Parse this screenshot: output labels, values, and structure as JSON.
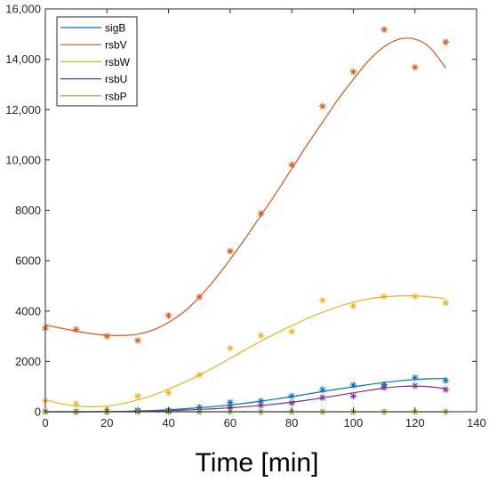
{
  "chart_data": {
    "type": "scatter",
    "title": "",
    "xlabel": "Time [min]",
    "ylabel": "",
    "xlim": [
      0,
      140
    ],
    "ylim": [
      0,
      16000
    ],
    "xticks": [
      0,
      20,
      40,
      60,
      80,
      100,
      120,
      140
    ],
    "yticks": [
      0,
      2000,
      4000,
      6000,
      8000,
      10000,
      12000,
      14000,
      16000
    ],
    "xtick_labels": [
      "0",
      "20",
      "40",
      "60",
      "80",
      "100",
      "120",
      "140"
    ],
    "ytick_labels": [
      "0",
      "2000",
      "4000",
      "6000",
      "8000",
      "10,000",
      "12,000",
      "14,000",
      "16,000"
    ],
    "grid": false,
    "legend_position": "top-left",
    "marker": "asterisk",
    "series": [
      {
        "name": "sigB",
        "color": "#0072BD",
        "x": [
          0,
          10,
          20,
          30,
          40,
          50,
          60,
          70,
          80,
          90,
          100,
          110,
          120,
          130
        ],
        "y": [
          0,
          0,
          0,
          60,
          60,
          180,
          370,
          420,
          620,
          880,
          1060,
          1080,
          1350,
          1240
        ],
        "fit_x": [
          0,
          5,
          10,
          15,
          20,
          25,
          30,
          35,
          40,
          45,
          50,
          55,
          60,
          65,
          70,
          75,
          80,
          85,
          90,
          95,
          100,
          105,
          110,
          115,
          120,
          125,
          130
        ],
        "fit_y": [
          0,
          0,
          0,
          0,
          5,
          15,
          30,
          50,
          80,
          115,
          160,
          210,
          270,
          340,
          420,
          510,
          600,
          700,
          800,
          900,
          990,
          1080,
          1160,
          1230,
          1280,
          1310,
          1320
        ]
      },
      {
        "name": "rsbV",
        "color": "#D95319",
        "x": [
          0,
          10,
          20,
          30,
          40,
          50,
          60,
          70,
          80,
          90,
          100,
          110,
          120,
          130
        ],
        "y": [
          3320,
          3270,
          3000,
          2830,
          3820,
          4560,
          6380,
          7870,
          9810,
          12130,
          13500,
          15180,
          13680,
          14680
        ],
        "fit_x": [
          0,
          5,
          10,
          15,
          20,
          25,
          30,
          35,
          40,
          45,
          50,
          55,
          60,
          65,
          70,
          75,
          80,
          85,
          90,
          95,
          100,
          105,
          110,
          115,
          120,
          125,
          130
        ],
        "fit_y": [
          3450,
          3320,
          3200,
          3100,
          3040,
          3030,
          3080,
          3250,
          3550,
          3970,
          4550,
          5250,
          6050,
          6900,
          7800,
          8700,
          9650,
          10600,
          11500,
          12400,
          13200,
          13950,
          14500,
          14800,
          14800,
          14450,
          13650
        ]
      },
      {
        "name": "rsbW",
        "color": "#EDB120",
        "x": [
          0,
          10,
          20,
          30,
          40,
          50,
          60,
          70,
          80,
          90,
          100,
          110,
          120,
          130
        ],
        "y": [
          440,
          320,
          80,
          620,
          760,
          1460,
          2520,
          3030,
          3180,
          4420,
          4200,
          4580,
          4580,
          4320
        ],
        "fit_x": [
          0,
          5,
          10,
          15,
          20,
          25,
          30,
          35,
          40,
          45,
          50,
          55,
          60,
          65,
          70,
          75,
          80,
          85,
          90,
          95,
          100,
          105,
          110,
          115,
          120,
          125,
          130
        ],
        "fit_y": [
          480,
          320,
          230,
          200,
          230,
          320,
          470,
          660,
          900,
          1160,
          1460,
          1780,
          2120,
          2470,
          2800,
          3120,
          3420,
          3700,
          3950,
          4170,
          4350,
          4480,
          4560,
          4600,
          4600,
          4560,
          4480
        ]
      },
      {
        "name": "rsbU",
        "color": "#7E2F8E",
        "x": [
          0,
          10,
          20,
          30,
          40,
          50,
          60,
          70,
          80,
          90,
          100,
          110,
          120,
          130
        ],
        "y": [
          0,
          0,
          0,
          20,
          40,
          80,
          180,
          260,
          350,
          560,
          620,
          960,
          1030,
          880
        ],
        "fit_x": [
          0,
          5,
          10,
          15,
          20,
          25,
          30,
          35,
          40,
          45,
          50,
          55,
          60,
          65,
          70,
          75,
          80,
          85,
          90,
          95,
          100,
          105,
          110,
          115,
          120,
          125,
          130
        ],
        "fit_y": [
          0,
          0,
          0,
          0,
          5,
          10,
          20,
          30,
          45,
          65,
          90,
          120,
          155,
          200,
          250,
          310,
          380,
          460,
          550,
          650,
          750,
          850,
          940,
          1000,
          1020,
          990,
          920
        ]
      },
      {
        "name": "rsbP",
        "color": "#77AC30",
        "x": [
          0,
          10,
          20,
          30,
          40,
          50,
          60,
          70,
          80,
          90,
          100,
          110,
          120,
          130
        ],
        "y": [
          0,
          0,
          0,
          0,
          0,
          0,
          0,
          0,
          0,
          0,
          0,
          0,
          0,
          0
        ],
        "fit_x": [
          0,
          130
        ],
        "fit_y": [
          0,
          0
        ]
      }
    ]
  }
}
